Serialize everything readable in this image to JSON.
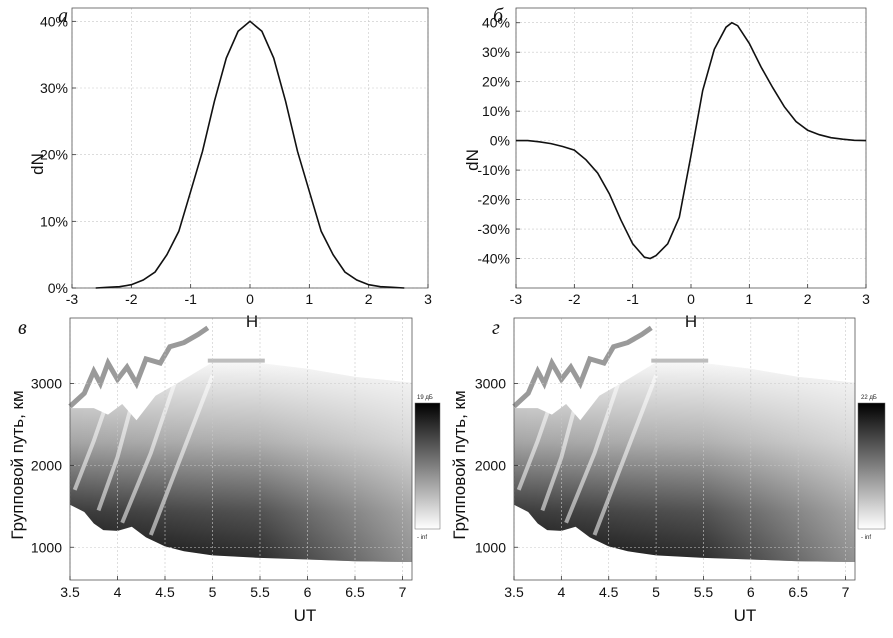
{
  "chart_data": [
    {
      "panel": "а",
      "type": "line",
      "xlabel": "H",
      "ylabel": "dN",
      "xlim": [
        -3,
        3
      ],
      "ylim": [
        0,
        42
      ],
      "xticks": [
        -3,
        -2,
        -1,
        0,
        1,
        2,
        3
      ],
      "xtick_labels": [
        "-3",
        "-2",
        "-1",
        "0",
        "1",
        "2",
        "3"
      ],
      "yticks": [
        0,
        10,
        20,
        30,
        40
      ],
      "ytick_labels": [
        "0%",
        "10%",
        "20%",
        "30%",
        "40%"
      ],
      "grid": true,
      "series": [
        {
          "x": [
            -2.6,
            -2.4,
            -2.2,
            -2.0,
            -1.8,
            -1.6,
            -1.4,
            -1.2,
            -1.0,
            -0.8,
            -0.6,
            -0.4,
            -0.2,
            0.0,
            0.2,
            0.4,
            0.6,
            0.8,
            1.0,
            1.2,
            1.4,
            1.6,
            1.8,
            2.0,
            2.2,
            2.4,
            2.6
          ],
          "y": [
            0.0,
            0.1,
            0.2,
            0.5,
            1.2,
            2.4,
            5.0,
            8.5,
            14.5,
            20.5,
            28.0,
            34.5,
            38.5,
            40.0,
            38.5,
            34.5,
            28.0,
            20.5,
            14.5,
            8.5,
            5.0,
            2.4,
            1.2,
            0.5,
            0.2,
            0.1,
            0.0
          ]
        }
      ]
    },
    {
      "panel": "б",
      "type": "line",
      "xlabel": "H",
      "ylabel": "dN",
      "xlim": [
        -3,
        3
      ],
      "ylim": [
        -50,
        45
      ],
      "xticks": [
        -3,
        -2,
        -1,
        0,
        1,
        2,
        3
      ],
      "xtick_labels": [
        "-3",
        "-2",
        "-1",
        "0",
        "1",
        "2",
        "3"
      ],
      "yticks": [
        -40,
        -30,
        -20,
        -10,
        0,
        10,
        20,
        30,
        40
      ],
      "ytick_labels": [
        "-40%",
        "-30%",
        "-20%",
        "-10%",
        "0%",
        "10%",
        "20%",
        "30%",
        "40%"
      ],
      "grid": true,
      "series": [
        {
          "x": [
            -3.0,
            -2.8,
            -2.6,
            -2.4,
            -2.2,
            -2.0,
            -1.8,
            -1.6,
            -1.4,
            -1.2,
            -1.0,
            -0.8,
            -0.7,
            -0.6,
            -0.4,
            -0.2,
            0.0,
            0.2,
            0.4,
            0.6,
            0.7,
            0.8,
            1.0,
            1.2,
            1.4,
            1.6,
            1.8,
            2.0,
            2.2,
            2.4,
            2.6,
            2.8,
            3.0
          ],
          "y": [
            0.0,
            0.0,
            -0.4,
            -1.0,
            -2.0,
            -3.2,
            -6.5,
            -11.0,
            -18.0,
            -27.0,
            -35.0,
            -39.5,
            -40.0,
            -39.0,
            -35.0,
            -26.0,
            -5.0,
            17.0,
            31.0,
            38.5,
            40.0,
            39.0,
            33.0,
            25.0,
            18.0,
            11.5,
            6.5,
            3.5,
            2.0,
            1.0,
            0.5,
            0.1,
            0.0
          ]
        }
      ]
    },
    {
      "panel": "в",
      "type": "heatmap",
      "xlabel": "UT",
      "ylabel": "Групповой путь, км",
      "xlim": [
        3.5,
        7.1
      ],
      "ylim": [
        600,
        3800
      ],
      "xticks": [
        3.5,
        4,
        4.5,
        5,
        5.5,
        6,
        6.5,
        7
      ],
      "xtick_labels": [
        "3.5",
        "4",
        "4.5",
        "5",
        "5.5",
        "6",
        "6.5",
        "7"
      ],
      "yticks": [
        1000,
        2000,
        3000
      ],
      "ytick_labels": [
        "1000",
        "2000",
        "3000"
      ],
      "colorbar": {
        "max_label": "19 дБ",
        "min_label": "- inf"
      },
      "grid": true
    },
    {
      "panel": "г",
      "type": "heatmap",
      "xlabel": "UT",
      "ylabel": "Групповой путь, км",
      "xlim": [
        3.5,
        7.1
      ],
      "ylim": [
        600,
        3800
      ],
      "xticks": [
        3.5,
        4,
        4.5,
        5,
        5.5,
        6,
        6.5,
        7
      ],
      "xtick_labels": [
        "3.5",
        "4",
        "4.5",
        "5",
        "5.5",
        "6",
        "6.5",
        "7"
      ],
      "yticks": [
        1000,
        2000,
        3000
      ],
      "ytick_labels": [
        "1000",
        "2000",
        "3000"
      ],
      "colorbar": {
        "max_label": "22 дБ",
        "min_label": "- inf"
      },
      "grid": true
    }
  ]
}
